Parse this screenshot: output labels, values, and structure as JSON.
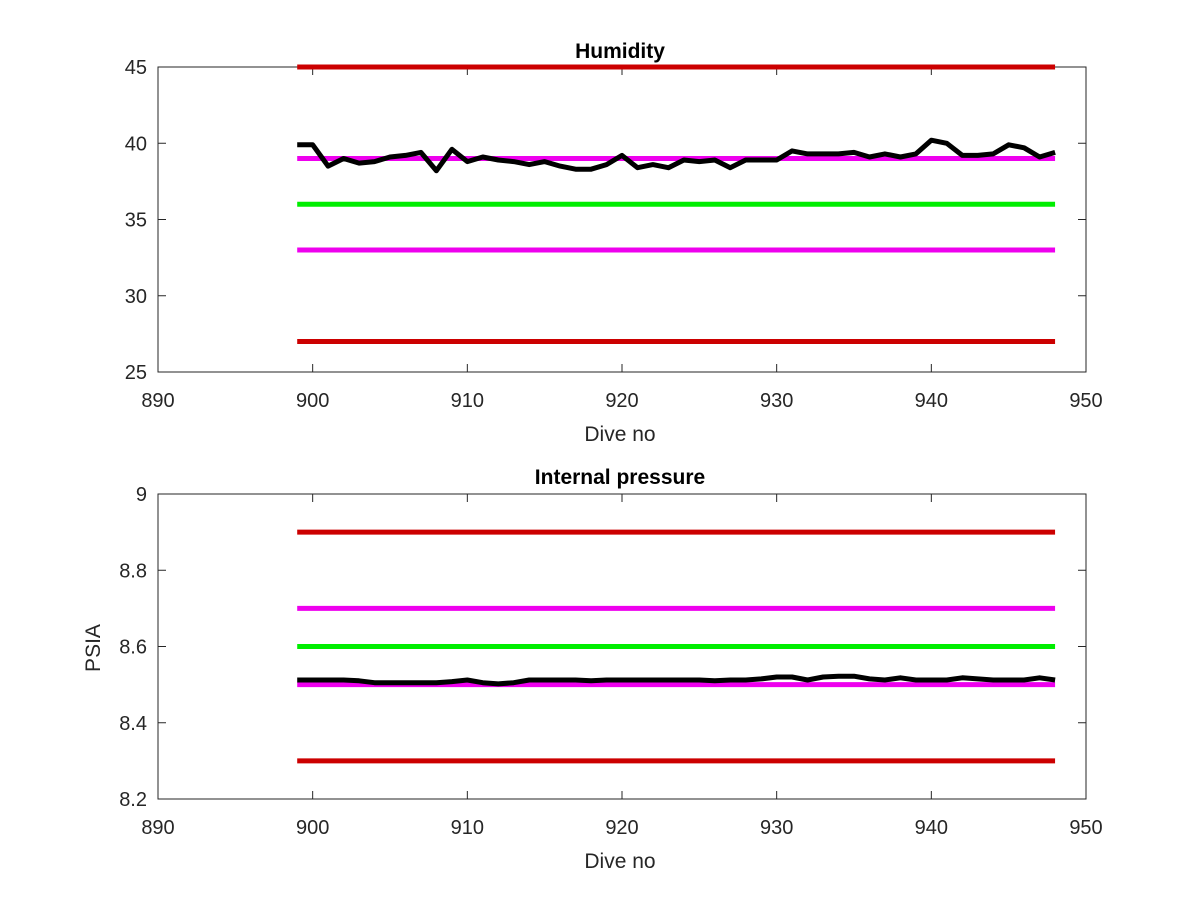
{
  "chart_data": [
    {
      "type": "line",
      "title": "Humidity",
      "xlabel": "Dive no",
      "ylabel": "",
      "xlim": [
        890,
        950
      ],
      "ylim": [
        25,
        45
      ],
      "xticks": [
        "890",
        "900",
        "910",
        "920",
        "930",
        "940",
        "950"
      ],
      "yticks": [
        "25",
        "30",
        "35",
        "40",
        "45"
      ],
      "grid": false,
      "reference_lines": [
        {
          "y": 45,
          "x": [
            899,
            948
          ],
          "color": "#cc0000"
        },
        {
          "y": 39,
          "x": [
            899,
            948
          ],
          "color": "#ee00ee"
        },
        {
          "y": 36,
          "x": [
            899,
            948
          ],
          "color": "#00ee00"
        },
        {
          "y": 33,
          "x": [
            899,
            948
          ],
          "color": "#ee00ee"
        },
        {
          "y": 27,
          "x": [
            899,
            948
          ],
          "color": "#cc0000"
        }
      ],
      "series": [
        {
          "color": "#000000",
          "x": [
            899,
            900,
            901,
            902,
            903,
            904,
            905,
            906,
            907,
            908,
            909,
            910,
            911,
            912,
            913,
            914,
            915,
            916,
            917,
            918,
            919,
            920,
            921,
            922,
            923,
            924,
            925,
            926,
            927,
            928,
            929,
            930,
            931,
            932,
            933,
            934,
            935,
            936,
            937,
            938,
            939,
            940,
            941,
            942,
            943,
            944,
            945,
            946,
            947,
            948
          ],
          "values": [
            39.9,
            39.9,
            38.5,
            39.0,
            38.7,
            38.8,
            39.1,
            39.2,
            39.4,
            38.2,
            39.6,
            38.8,
            39.1,
            38.9,
            38.8,
            38.6,
            38.8,
            38.5,
            38.3,
            38.3,
            38.6,
            39.2,
            38.4,
            38.6,
            38.4,
            38.9,
            38.8,
            38.9,
            38.4,
            38.9,
            38.9,
            38.9,
            39.5,
            39.3,
            39.3,
            39.3,
            39.4,
            39.1,
            39.3,
            39.1,
            39.3,
            40.2,
            40.0,
            39.2,
            39.2,
            39.3,
            39.9,
            39.7,
            39.1,
            39.4
          ]
        }
      ]
    },
    {
      "type": "line",
      "title": "Internal pressure",
      "xlabel": "Dive no",
      "ylabel": "PSIA",
      "xlim": [
        890,
        950
      ],
      "ylim": [
        8.2,
        9
      ],
      "xticks": [
        "890",
        "900",
        "910",
        "920",
        "930",
        "940",
        "950"
      ],
      "yticks": [
        "8.2",
        "8.4",
        "8.6",
        "8.8",
        "9"
      ],
      "grid": false,
      "reference_lines": [
        {
          "y": 8.9,
          "x": [
            899,
            948
          ],
          "color": "#cc0000"
        },
        {
          "y": 8.7,
          "x": [
            899,
            948
          ],
          "color": "#ee00ee"
        },
        {
          "y": 8.6,
          "x": [
            899,
            948
          ],
          "color": "#00ee00"
        },
        {
          "y": 8.5,
          "x": [
            899,
            948
          ],
          "color": "#ee00ee"
        },
        {
          "y": 8.3,
          "x": [
            899,
            948
          ],
          "color": "#cc0000"
        }
      ],
      "series": [
        {
          "color": "#000000",
          "x": [
            899,
            900,
            901,
            902,
            903,
            904,
            905,
            906,
            907,
            908,
            909,
            910,
            911,
            912,
            913,
            914,
            915,
            916,
            917,
            918,
            919,
            920,
            921,
            922,
            923,
            924,
            925,
            926,
            927,
            928,
            929,
            930,
            931,
            932,
            933,
            934,
            935,
            936,
            937,
            938,
            939,
            940,
            941,
            942,
            943,
            944,
            945,
            946,
            947,
            948
          ],
          "values": [
            8.512,
            8.512,
            8.512,
            8.512,
            8.51,
            8.505,
            8.505,
            8.505,
            8.505,
            8.505,
            8.508,
            8.512,
            8.505,
            8.502,
            8.505,
            8.512,
            8.512,
            8.512,
            8.512,
            8.51,
            8.512,
            8.512,
            8.512,
            8.512,
            8.512,
            8.512,
            8.512,
            8.51,
            8.512,
            8.512,
            8.515,
            8.52,
            8.52,
            8.512,
            8.52,
            8.522,
            8.522,
            8.515,
            8.512,
            8.518,
            8.512,
            8.512,
            8.512,
            8.518,
            8.515,
            8.512,
            8.512,
            8.512,
            8.518,
            8.512
          ]
        }
      ]
    }
  ]
}
